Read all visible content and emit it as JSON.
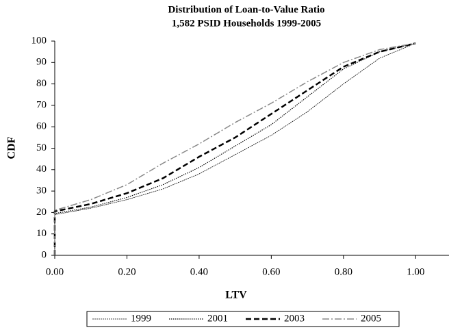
{
  "chart_data": {
    "type": "line",
    "title": "Distribution of Loan-to-Value Ratio",
    "subtitle": "1,582 PSID Households 1999-2005",
    "x_label": "LTV",
    "y_label": "CDF",
    "x": [
      0,
      0,
      0.1,
      0.2,
      0.3,
      0.4,
      0.5,
      0.6,
      0.7,
      0.8,
      0.9,
      1.0
    ],
    "series": [
      {
        "name": "1999",
        "color": "#000000",
        "width": 0.8,
        "dash": "2,1",
        "values": [
          0,
          19,
          22,
          26,
          31,
          38,
          47,
          56,
          67,
          80,
          92,
          99
        ]
      },
      {
        "name": "2001",
        "color": "#000000",
        "width": 1.2,
        "dash": "1.5,1.5",
        "values": [
          0,
          19.5,
          22.5,
          27,
          33,
          41,
          51,
          61,
          74,
          87,
          95,
          99
        ]
      },
      {
        "name": "2003",
        "color": "#000000",
        "width": 2.5,
        "dash": "8,4",
        "values": [
          0,
          20.5,
          24,
          29,
          36,
          46,
          55,
          66,
          77,
          88,
          95,
          99
        ]
      },
      {
        "name": "2005",
        "color": "#888888",
        "width": 1.5,
        "dash": "10,3,2,3",
        "values": [
          0,
          21,
          26,
          33,
          43,
          52,
          62,
          71,
          81,
          90,
          96,
          99
        ]
      }
    ],
    "xlim": [
      0,
      1.1
    ],
    "xticks": [
      {
        "value": 0,
        "label": "0.00"
      },
      {
        "value": 0.2,
        "label": "0.20"
      },
      {
        "value": 0.4,
        "label": "0.40"
      },
      {
        "value": 0.6,
        "label": "0.60"
      },
      {
        "value": 0.8,
        "label": "0.80"
      },
      {
        "value": 1.0,
        "label": "1.00"
      }
    ],
    "ylim": [
      0,
      100
    ],
    "yticks": [
      0,
      10,
      20,
      30,
      40,
      50,
      60,
      70,
      80,
      90,
      100
    ],
    "legend": "bottom"
  }
}
